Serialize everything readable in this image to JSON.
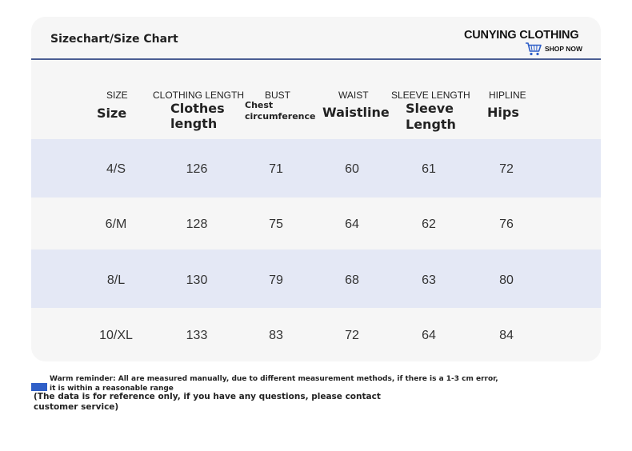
{
  "header": {
    "title": "Sizechart/Size Chart",
    "brand": "CUNYING CLOTHING",
    "shop_now": "SHOP NOW",
    "cart_icon": "shopping-cart-icon",
    "accent_color": "#4a5d93"
  },
  "table": {
    "columns": [
      {
        "en": "SIZE",
        "label_lines": [
          "Size"
        ]
      },
      {
        "en": "CLOTHING LENGTH",
        "label_lines": [
          "Clothes",
          "length"
        ]
      },
      {
        "en": "BUST",
        "label_lines": [
          "Chest",
          "circumference"
        ]
      },
      {
        "en": "WAIST",
        "label_lines": [
          "Waistline"
        ]
      },
      {
        "en": "SLEEVE LENGTH",
        "label_lines": [
          "Sleeve",
          "Length"
        ]
      },
      {
        "en": "HIPLINE",
        "label_lines": [
          "Hips"
        ]
      }
    ],
    "rows": [
      [
        "4/S",
        "126",
        "71",
        "60",
        "61",
        "72"
      ],
      [
        "6/M",
        "128",
        "75",
        "64",
        "62",
        "76"
      ],
      [
        "8/L",
        "130",
        "79",
        "68",
        "63",
        "80"
      ],
      [
        "10/XL",
        "133",
        "83",
        "72",
        "64",
        "84"
      ]
    ],
    "row_colors": [
      "#e4e8f5",
      "#f6f6f6"
    ]
  },
  "note": {
    "line1": "Warm reminder: All are measured manually, due to different measurement methods, if there is a 1-3 cm error,",
    "line2": "it is within a reasonable range",
    "line3": "(The data is for reference only, if you have any questions, please contact",
    "line4": "customer service)",
    "box_color": "#2f5fc8"
  }
}
